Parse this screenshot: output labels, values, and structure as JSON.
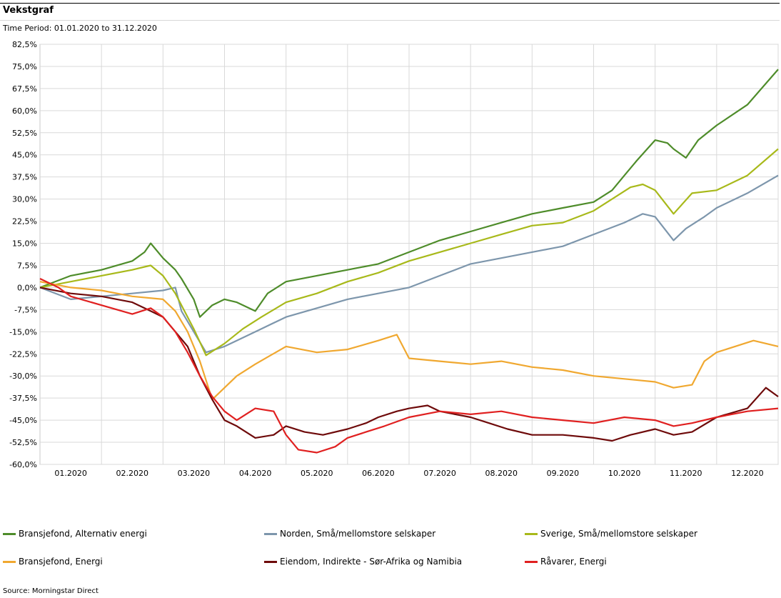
{
  "title": "Vekstgraf",
  "period": "Time Period: 01.01.2020 to 31.12.2020",
  "source": "Source: Morningstar Direct",
  "chart_data": {
    "type": "line",
    "ylim": [
      -60,
      82.5
    ],
    "yticks": [
      82.5,
      75,
      67.5,
      60,
      52.5,
      45,
      37.5,
      30,
      22.5,
      15,
      7.5,
      0,
      -7.5,
      -15,
      -22.5,
      -30,
      -37.5,
      -45,
      -52.5,
      -60
    ],
    "yticklabels": [
      "82,5%",
      "75,0%",
      "67,5%",
      "60,0%",
      "52,5%",
      "45,0%",
      "37,5%",
      "30,0%",
      "22,5%",
      "15,0%",
      "7,5%",
      "0,0%",
      "-7,5%",
      "-15,0%",
      "-22,5%",
      "-30,0%",
      "-37,5%",
      "-45,0%",
      "-52,5%",
      "-60,0%"
    ],
    "xlim": [
      0,
      12
    ],
    "xticks": [
      1,
      2,
      3,
      4,
      5,
      6,
      7,
      8,
      9,
      10,
      11,
      12
    ],
    "xticklabels": [
      "01.2020",
      "02.2020",
      "03.2020",
      "04.2020",
      "05.2020",
      "06.2020",
      "07.2020",
      "08.2020",
      "09.2020",
      "10.2020",
      "11.2020",
      "12.2020"
    ],
    "grid": true,
    "legend_position": "bottom",
    "series": [
      {
        "name": "Bransjefond, Alternativ energi",
        "color": "#4e8c2a",
        "x": [
          0,
          0.5,
          1,
          1.5,
          1.7,
          1.8,
          2,
          2.2,
          2.3,
          2.5,
          2.6,
          2.8,
          3,
          3.2,
          3.5,
          3.7,
          4,
          4.5,
          5,
          5.5,
          6,
          6.5,
          7,
          7.5,
          8,
          8.5,
          9,
          9.3,
          9.5,
          9.7,
          10,
          10.2,
          10.3,
          10.5,
          10.7,
          11,
          11.5,
          12
        ],
        "y": [
          0,
          4,
          6,
          9,
          12,
          15,
          10,
          6,
          3,
          -4,
          -10,
          -6,
          -4,
          -5,
          -8,
          -2,
          2,
          4,
          6,
          8,
          12,
          16,
          19,
          22,
          25,
          27,
          29,
          33,
          38,
          43,
          50,
          49,
          47,
          44,
          50,
          55,
          62,
          74
        ]
      },
      {
        "name": "Norden, Små/mellomstore selskaper",
        "color": "#7d96ac",
        "x": [
          0,
          0.5,
          1,
          1.5,
          2,
          2.2,
          2.3,
          2.5,
          2.7,
          3,
          3.3,
          3.6,
          4,
          4.5,
          5,
          5.5,
          6,
          6.5,
          7,
          7.5,
          8,
          8.5,
          9,
          9.5,
          9.8,
          10,
          10.3,
          10.5,
          10.8,
          11,
          11.5,
          12
        ],
        "y": [
          0,
          -4,
          -3,
          -2,
          -1,
          0,
          -8,
          -15,
          -22,
          -20,
          -17,
          -14,
          -10,
          -7,
          -4,
          -2,
          0,
          4,
          8,
          10,
          12,
          14,
          18,
          22,
          25,
          24,
          16,
          20,
          24,
          27,
          32,
          38
        ]
      },
      {
        "name": "Sverige, Små/mellomstore selskaper",
        "color": "#a8b91a",
        "x": [
          0,
          0.5,
          1,
          1.5,
          1.7,
          1.8,
          2,
          2.2,
          2.3,
          2.5,
          2.7,
          3,
          3.3,
          3.6,
          4,
          4.5,
          5,
          5.5,
          6,
          6.5,
          7,
          7.5,
          8,
          8.5,
          9,
          9.3,
          9.6,
          9.8,
          10,
          10.3,
          10.6,
          11,
          11.5,
          12
        ],
        "y": [
          0,
          2,
          4,
          6,
          7,
          7.5,
          4,
          -2,
          -6,
          -14,
          -23,
          -19,
          -14,
          -10,
          -5,
          -2,
          2,
          5,
          9,
          12,
          15,
          18,
          21,
          22,
          26,
          30,
          34,
          35,
          33,
          25,
          32,
          33,
          38,
          47
        ]
      },
      {
        "name": "Bransjefond, Energi",
        "color": "#f0a830",
        "x": [
          0,
          0.5,
          1,
          1.5,
          2,
          2.2,
          2.4,
          2.6,
          2.8,
          3,
          3.2,
          3.5,
          4,
          4.5,
          5,
          5.5,
          5.8,
          6,
          6.5,
          7,
          7.5,
          8,
          8.5,
          9,
          9.5,
          10,
          10.3,
          10.6,
          10.8,
          11,
          11.3,
          11.6,
          12
        ],
        "y": [
          2,
          0,
          -1,
          -3,
          -4,
          -8,
          -15,
          -25,
          -38,
          -34,
          -30,
          -26,
          -20,
          -22,
          -21,
          -18,
          -16,
          -24,
          -25,
          -26,
          -25,
          -27,
          -28,
          -30,
          -31,
          -32,
          -34,
          -33,
          -25,
          -22,
          -20,
          -18,
          -20
        ]
      },
      {
        "name": "Eiendom, Indirekte - Sør-Afrika og Namibia",
        "color": "#6e0a0a",
        "x": [
          0,
          0.5,
          1,
          1.5,
          1.8,
          2,
          2.2,
          2.4,
          2.6,
          2.8,
          3,
          3.2,
          3.5,
          3.8,
          4,
          4.3,
          4.6,
          5,
          5.3,
          5.5,
          5.8,
          6,
          6.3,
          6.5,
          7,
          7.3,
          7.6,
          8,
          8.5,
          9,
          9.3,
          9.6,
          10,
          10.3,
          10.6,
          11,
          11.5,
          11.8,
          12
        ],
        "y": [
          0,
          -2,
          -3,
          -5,
          -8,
          -10,
          -15,
          -20,
          -30,
          -38,
          -45,
          -47,
          -51,
          -50,
          -47,
          -49,
          -50,
          -48,
          -46,
          -44,
          -42,
          -41,
          -40,
          -42,
          -44,
          -46,
          -48,
          -50,
          -50,
          -51,
          -52,
          -50,
          -48,
          -50,
          -49,
          -44,
          -41,
          -34,
          -37
        ]
      },
      {
        "name": "Råvarer, Energi",
        "color": "#e02020",
        "x": [
          0,
          0.3,
          0.5,
          1,
          1.5,
          1.8,
          2,
          2.2,
          2.4,
          2.6,
          2.8,
          3,
          3.2,
          3.5,
          3.8,
          4,
          4.2,
          4.5,
          4.8,
          5,
          5.3,
          5.6,
          6,
          6.5,
          7,
          7.5,
          8,
          8.5,
          9,
          9.5,
          10,
          10.3,
          10.6,
          11,
          11.5,
          12
        ],
        "y": [
          3,
          0,
          -3,
          -6,
          -9,
          -7,
          -10,
          -15,
          -22,
          -30,
          -37,
          -42,
          -45,
          -41,
          -42,
          -50,
          -55,
          -56,
          -54,
          -51,
          -49,
          -47,
          -44,
          -42,
          -43,
          -42,
          -44,
          -45,
          -46,
          -44,
          -45,
          -47,
          -46,
          -44,
          -42,
          -41
        ]
      }
    ]
  }
}
